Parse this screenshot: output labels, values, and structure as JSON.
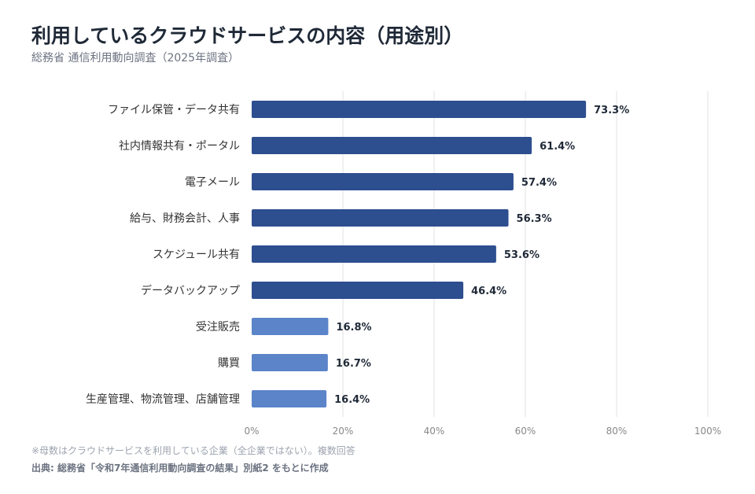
{
  "title": "利用しているクラウドサービスの内容（用途別）",
  "subtitle": "総務省 通信利用動向調査（2025年調査）",
  "footnote": "※母数はクラウドサービスを利用している企業（全企業ではない）。複数回答",
  "source": "出典: 総務省「令和7年通信利用動向調査の結果」別紙2 をもとに作成",
  "colors": {
    "primary": "#2d4e8f",
    "secondary": "#5b84c9",
    "grid": "#ebebeb"
  },
  "chart_data": {
    "type": "bar",
    "orientation": "horizontal",
    "categories": [
      "ファイル保管・データ共有",
      "社内情報共有・ポータル",
      "電子メール",
      "給与、財務会計、人事",
      "スケジュール共有",
      "データバックアップ",
      "受注販売",
      "購買",
      "生産管理、物流管理、店舗管理"
    ],
    "values": [
      73.3,
      61.4,
      57.4,
      56.3,
      53.6,
      46.4,
      16.8,
      16.7,
      16.4
    ],
    "value_labels": [
      "73.3%",
      "61.4%",
      "57.4%",
      "56.3%",
      "53.6%",
      "46.4%",
      "16.8%",
      "16.7%",
      "16.4%"
    ],
    "bar_colors": [
      "#2d4e8f",
      "#2d4e8f",
      "#2d4e8f",
      "#2d4e8f",
      "#2d4e8f",
      "#2d4e8f",
      "#5b84c9",
      "#5b84c9",
      "#5b84c9"
    ],
    "xlim": [
      0,
      100
    ],
    "xticks": [
      0,
      20,
      40,
      60,
      80,
      100
    ],
    "xtick_labels": [
      "0%",
      "20%",
      "40%",
      "60%",
      "80%",
      "100%"
    ],
    "grid": true,
    "legend": "none"
  }
}
